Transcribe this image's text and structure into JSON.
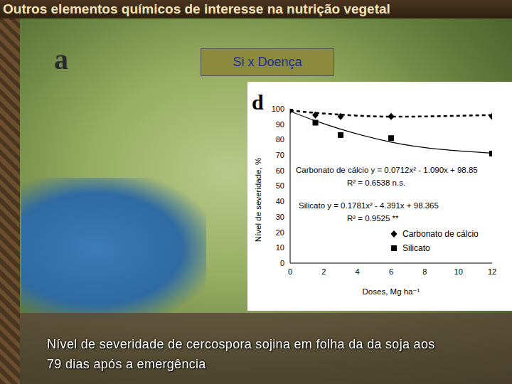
{
  "title": "Outros elementos químicos de interesse na nutrição vegetal",
  "box_label": "Si x Doença",
  "panel_labels": [
    "a",
    "d"
  ],
  "caption": "Nível de severidade de cercospora sojina em folha da da soja aos 79 dias após a emergência",
  "chart_data": {
    "type": "scatter",
    "x_label": "Doses, Mg ha⁻¹",
    "y_label": "Nível de severidade, %",
    "xlim": [
      0,
      12
    ],
    "xticks": [
      0,
      2,
      4,
      6,
      8,
      10,
      12
    ],
    "ylim": [
      0,
      100
    ],
    "yticks": [
      0,
      10,
      20,
      30,
      40,
      50,
      60,
      70,
      80,
      90,
      100
    ],
    "grid": false,
    "legend": "lower right",
    "series": [
      {
        "name": "Carbonato de cálcio",
        "color": "#000000",
        "marker": "diamond",
        "line_style": "dashed",
        "x": [
          0,
          1.5,
          3,
          6,
          12
        ],
        "values": [
          99,
          96,
          95,
          95,
          95
        ],
        "fit_values": [
          98.85,
          97.4,
          96.2,
          94.9,
          96.0
        ]
      },
      {
        "name": "Silicato",
        "color": "#000000",
        "marker": "square",
        "line_style": "solid",
        "x": [
          0,
          1.5,
          3,
          6,
          12
        ],
        "values": [
          100,
          91,
          83,
          81,
          71
        ],
        "fit_values": [
          98.4,
          92.2,
          86.8,
          78.4,
          71.3
        ]
      }
    ],
    "annotations": [
      "Carbonato de cálcio y = 0.0712x² - 1.090x + 98.85",
      "R² = 0.6538 n.s.",
      "Silicato y = 0.1781x² - 4.391x + 98.365",
      "R² = 0.9525 **"
    ]
  }
}
